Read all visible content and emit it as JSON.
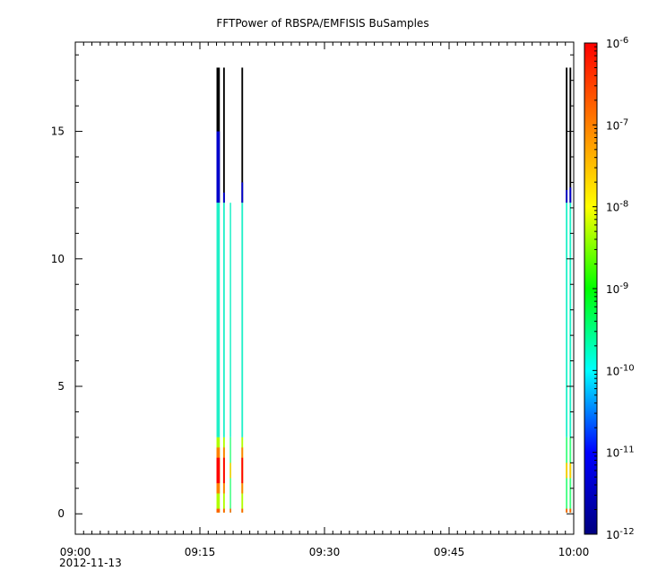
{
  "chart_data": {
    "type": "heatmap",
    "title": "FFTPower of RBSPA/EMFISIS  BuSamples",
    "xlabel": "",
    "ylabel": "",
    "x_range": [
      "09:00",
      "10:00"
    ],
    "x_range_minutes": [
      0,
      60
    ],
    "x_ticks": [
      {
        "minute": 0,
        "label": "09:00",
        "sublabel": "2012-11-13"
      },
      {
        "minute": 15,
        "label": "09:15",
        "sublabel": ""
      },
      {
        "minute": 30,
        "label": "09:30",
        "sublabel": ""
      },
      {
        "minute": 45,
        "label": "09:45",
        "sublabel": ""
      },
      {
        "minute": 60,
        "label": "10:00",
        "sublabel": ""
      }
    ],
    "ylim": [
      -0.8,
      18.5
    ],
    "y_ticks": [
      0,
      5,
      10,
      15
    ],
    "y_tick_labels": [
      "0",
      "5",
      "10",
      "15"
    ],
    "colorbar": {
      "scale": "log",
      "range_exponent": [
        -12,
        -6
      ],
      "tick_exponents": [
        -12,
        -11,
        -10,
        -9,
        -8,
        -7,
        -6
      ],
      "tick_labels": [
        "10-12",
        "10-11",
        "10-10",
        "10-9",
        "10-8",
        "10-7",
        "10-6"
      ],
      "colormap": [
        "#000080",
        "#0000ff",
        "#00ffff",
        "#00ff00",
        "#ffff00",
        "#ff8000",
        "#ff0000"
      ]
    },
    "bursts": [
      {
        "minute_start": 17.0,
        "minute_end": 17.4,
        "top_color": "#000000",
        "cyan_top": 12.2,
        "blue_top": 15.0,
        "y_top": 17.5
      },
      {
        "minute_start": 17.8,
        "minute_end": 18.0,
        "top_color": "#000000",
        "cyan_top": 12.2,
        "blue_top": 12.6,
        "y_top": 17.5
      },
      {
        "minute_start": 18.6,
        "minute_end": 18.75,
        "top_color": "#ffffff",
        "cyan_top": 12.2,
        "blue_top": 12.2,
        "y_top": 17.5
      },
      {
        "minute_start": 20.0,
        "minute_end": 20.2,
        "top_color": "#000000",
        "cyan_top": 12.2,
        "blue_top": 13.0,
        "y_top": 17.5
      },
      {
        "minute_start": 59.05,
        "minute_end": 59.25,
        "top_color": "#000000",
        "cyan_top": 12.2,
        "blue_top": 12.7,
        "y_top": 17.5
      },
      {
        "minute_start": 59.5,
        "minute_end": 59.7,
        "top_color": "#000000",
        "cyan_top": 12.2,
        "blue_top": 12.8,
        "y_top": 17.5
      }
    ],
    "low_band": {
      "y_bottom": 0.05,
      "y_top": 3.0,
      "peak_y": 1.7
    }
  }
}
